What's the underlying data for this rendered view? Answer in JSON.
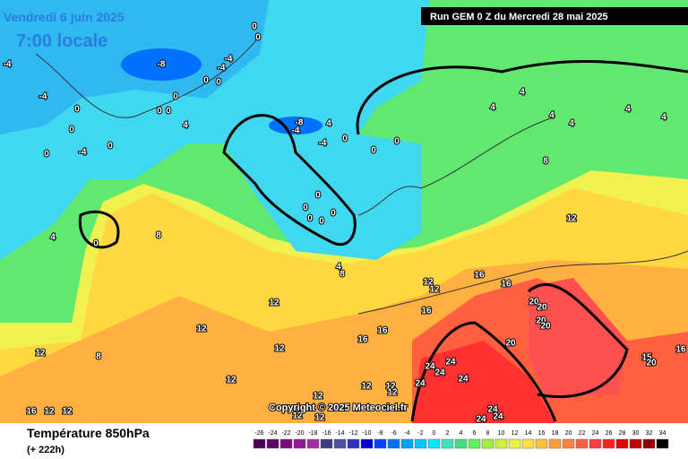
{
  "header": {
    "date": "Vendredi 6 juin 2025",
    "time": "7:00 locale",
    "run": "Run GEM 0 Z du Mercredi 28 mai 2025"
  },
  "map": {
    "copyright": "Copyright © 2025 Meteociel.fr",
    "labels": [
      "-4",
      "-4",
      "0",
      "0",
      "0",
      "-4",
      "0",
      "0",
      "0",
      "0",
      "4",
      "-8",
      "0",
      "0",
      "-4",
      "0",
      "0",
      "-4",
      "4",
      "-8",
      "-4",
      "-4",
      "0",
      "0",
      "0",
      "0",
      "0",
      "0",
      "0",
      "0",
      "4",
      "0",
      "8",
      "4",
      "8",
      "4",
      "4",
      "4",
      "4",
      "4",
      "4",
      "8",
      "12",
      "12",
      "12",
      "16",
      "16",
      "20",
      "20",
      "20",
      "20",
      "20",
      "16",
      "16",
      "16",
      "12",
      "12",
      "12",
      "12",
      "8",
      "24",
      "24",
      "24",
      "24",
      "24",
      "24",
      "24",
      "24",
      "12",
      "12",
      "12",
      "12",
      "12",
      "12",
      "16",
      "12",
      "12",
      "15",
      "20",
      "16",
      "12"
    ]
  },
  "legend": {
    "title": "Température 850hPa",
    "lead": "(+ 222h)",
    "scale": [
      -26,
      -24,
      -22,
      -20,
      -18,
      -16,
      -14,
      -12,
      -10,
      -8,
      -6,
      -4,
      -2,
      0,
      2,
      4,
      6,
      8,
      10,
      12,
      14,
      16,
      18,
      20,
      22,
      24,
      26,
      28,
      30,
      32,
      34
    ],
    "colors": [
      "#4b0050",
      "#600060",
      "#7a0a7a",
      "#901890",
      "#a030a0",
      "#3c3c80",
      "#5050a0",
      "#3030c0",
      "#0000d0",
      "#0040ff",
      "#0070ff",
      "#00a0ff",
      "#00c8ff",
      "#00e8ff",
      "#40e0c0",
      "#40e080",
      "#60f060",
      "#a0f040",
      "#d0f040",
      "#f0f040",
      "#ffe040",
      "#ffc040",
      "#ffa040",
      "#ff8040",
      "#ff6040",
      "#ff4040",
      "#ff2020",
      "#e00000",
      "#c00000",
      "#900000",
      "#000000"
    ]
  }
}
